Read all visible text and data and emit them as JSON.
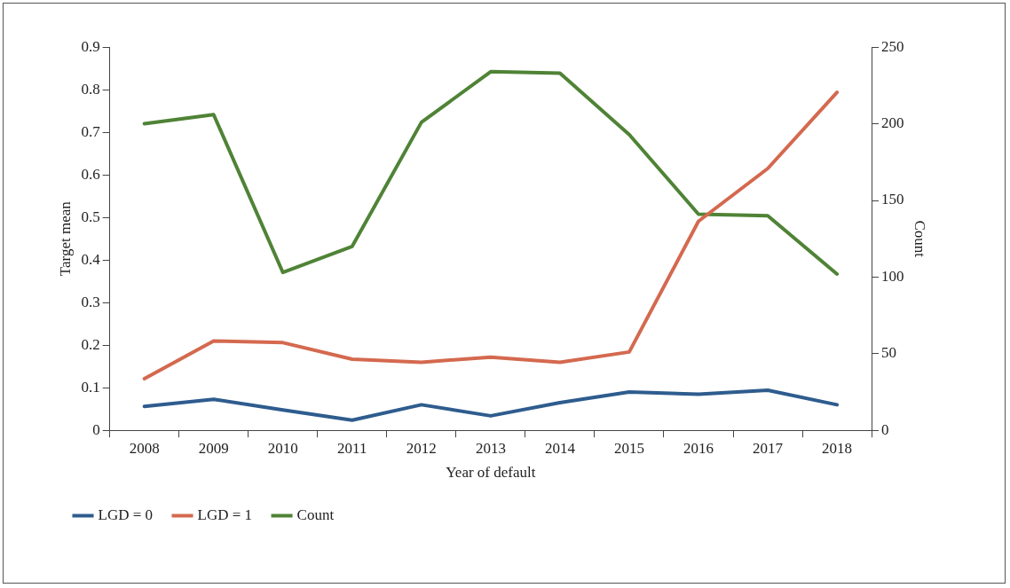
{
  "chart_data": {
    "type": "line",
    "xlabel": "Year of default",
    "ylabel": "Target mean",
    "y2label": "Count",
    "categories": [
      "2008",
      "2009",
      "2010",
      "2011",
      "2012",
      "2013",
      "2014",
      "2015",
      "2016",
      "2017",
      "2018"
    ],
    "series": [
      {
        "name": "LGD = 0",
        "color": "#2e5c8e",
        "values": [
          0.056,
          0.073,
          0.048,
          0.024,
          0.06,
          0.034,
          0.065,
          0.09,
          0.085,
          0.094,
          0.06
        ]
      },
      {
        "name": "LGD = 1",
        "color": "#d4694f",
        "values": [
          0.121,
          0.21,
          0.206,
          0.167,
          0.16,
          0.172,
          0.16,
          0.184,
          0.491,
          0.615,
          0.794
        ]
      },
      {
        "name": "Count",
        "color": "#4f8336",
        "axis": "y2",
        "values": [
          200,
          206,
          103,
          120,
          201,
          234,
          233,
          193,
          141,
          140,
          102
        ]
      }
    ],
    "ylim": [
      0,
      0.9
    ],
    "yticks": [
      0,
      0.1,
      0.2,
      0.3,
      0.4,
      0.5,
      0.6,
      0.7,
      0.8,
      0.9
    ],
    "y2lim": [
      0,
      250
    ],
    "y2ticks": [
      0,
      50,
      100,
      150,
      200,
      250
    ],
    "grid": false,
    "legend": "bottom left",
    "marker": "none",
    "line_style": "solid"
  }
}
